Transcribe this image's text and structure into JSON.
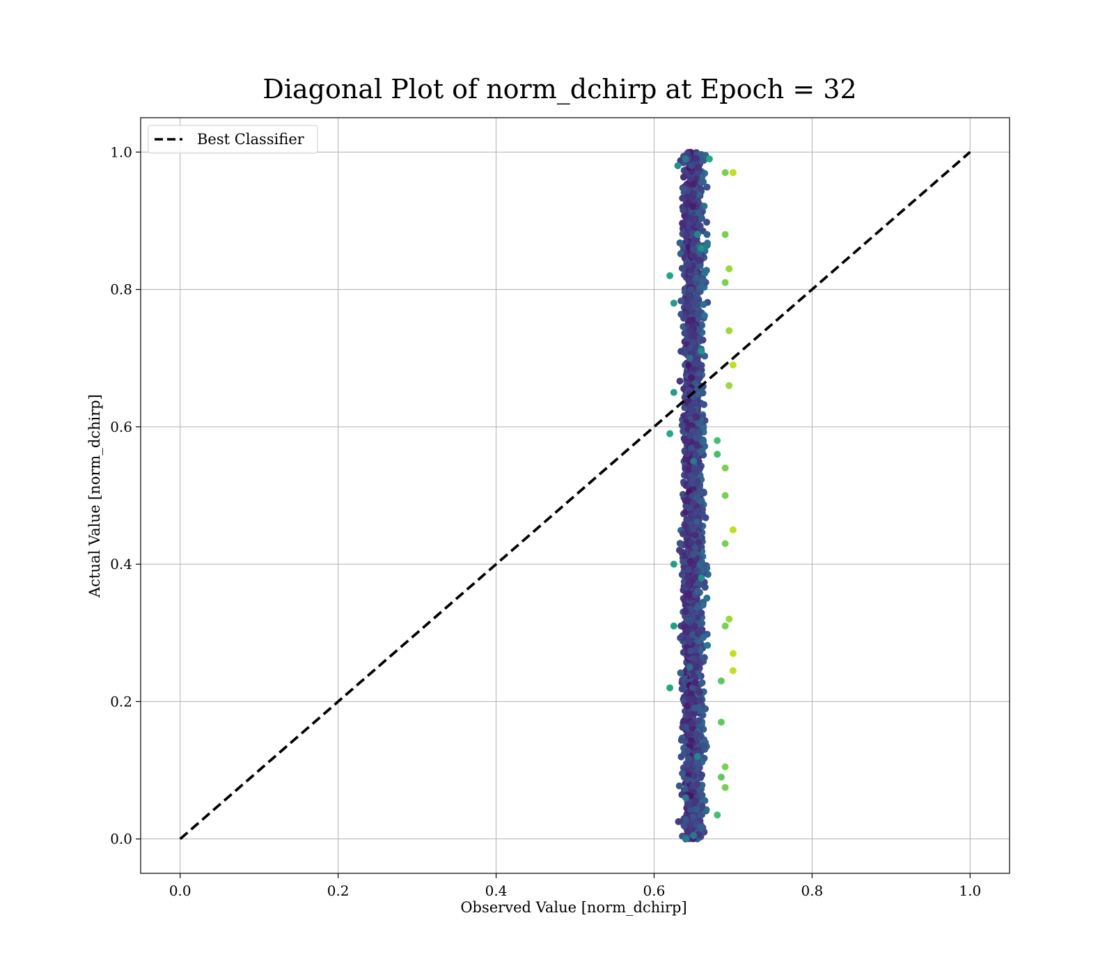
{
  "chart_data": {
    "type": "scatter",
    "title": "Diagonal Plot of norm_dchirp at Epoch = 32",
    "xlabel": "Observed Value [norm_dchirp]",
    "ylabel": "Actual Value [norm_dchirp]",
    "xlim": [
      -0.05,
      1.05
    ],
    "ylim": [
      -0.05,
      1.05
    ],
    "xticks": [
      "0.0",
      "0.2",
      "0.4",
      "0.6",
      "0.8",
      "1.0"
    ],
    "yticks": [
      "0.0",
      "0.2",
      "0.4",
      "0.6",
      "0.8",
      "1.0"
    ],
    "grid": true,
    "legend": {
      "placement": "upper-left",
      "entries": [
        "Best Classifier"
      ]
    },
    "series": [
      {
        "name": "Best Classifier",
        "kind": "line",
        "style": "dashed",
        "color": "#000000",
        "x": [
          0.0,
          1.0
        ],
        "y": [
          0.0,
          1.0
        ]
      },
      {
        "kind": "scatter",
        "colormap": "viridis",
        "x_range": [
          0.62,
          0.7
        ],
        "x_center": 0.645,
        "y_range": [
          0.0,
          1.0
        ],
        "point_count": 2600,
        "points": [
          [
            0.655,
            0.88
          ],
          [
            0.69,
            0.88
          ],
          [
            0.66,
            0.71
          ],
          [
            0.7,
            0.69
          ],
          [
            0.625,
            0.4
          ],
          [
            0.69,
            0.43
          ],
          [
            0.7,
            0.45
          ],
          [
            0.69,
            0.5
          ],
          [
            0.7,
            0.27
          ],
          [
            0.7,
            0.245
          ],
          [
            0.685,
            0.17
          ],
          [
            0.69,
            0.105
          ],
          [
            0.685,
            0.09
          ],
          [
            0.69,
            0.075
          ],
          [
            0.68,
            0.035
          ],
          [
            0.65,
            0.005
          ],
          [
            0.64,
            0.0
          ],
          [
            0.63,
            0.98
          ],
          [
            0.69,
            0.97
          ],
          [
            0.7,
            0.97
          ],
          [
            0.695,
            0.83
          ],
          [
            0.69,
            0.81
          ],
          [
            0.62,
            0.82
          ],
          [
            0.625,
            0.78
          ],
          [
            0.695,
            0.74
          ],
          [
            0.695,
            0.66
          ],
          [
            0.68,
            0.56
          ],
          [
            0.69,
            0.54
          ],
          [
            0.695,
            0.32
          ],
          [
            0.69,
            0.31
          ],
          [
            0.685,
            0.23
          ],
          [
            0.62,
            0.22
          ],
          [
            0.625,
            0.31
          ],
          [
            0.62,
            0.59
          ],
          [
            0.625,
            0.65
          ],
          [
            0.64,
            0.99
          ],
          [
            0.67,
            0.99
          ],
          [
            0.66,
            0.86
          ],
          [
            0.645,
            0.7
          ],
          [
            0.65,
            0.55
          ],
          [
            0.66,
            0.38
          ],
          [
            0.645,
            0.25
          ],
          [
            0.655,
            0.12
          ],
          [
            0.64,
            0.06
          ],
          [
            0.68,
            0.58
          ]
        ]
      }
    ],
    "colors": {
      "dark": "#440154",
      "mid": "#31688e",
      "green": "#35b779",
      "yellow": "#fde725"
    }
  }
}
